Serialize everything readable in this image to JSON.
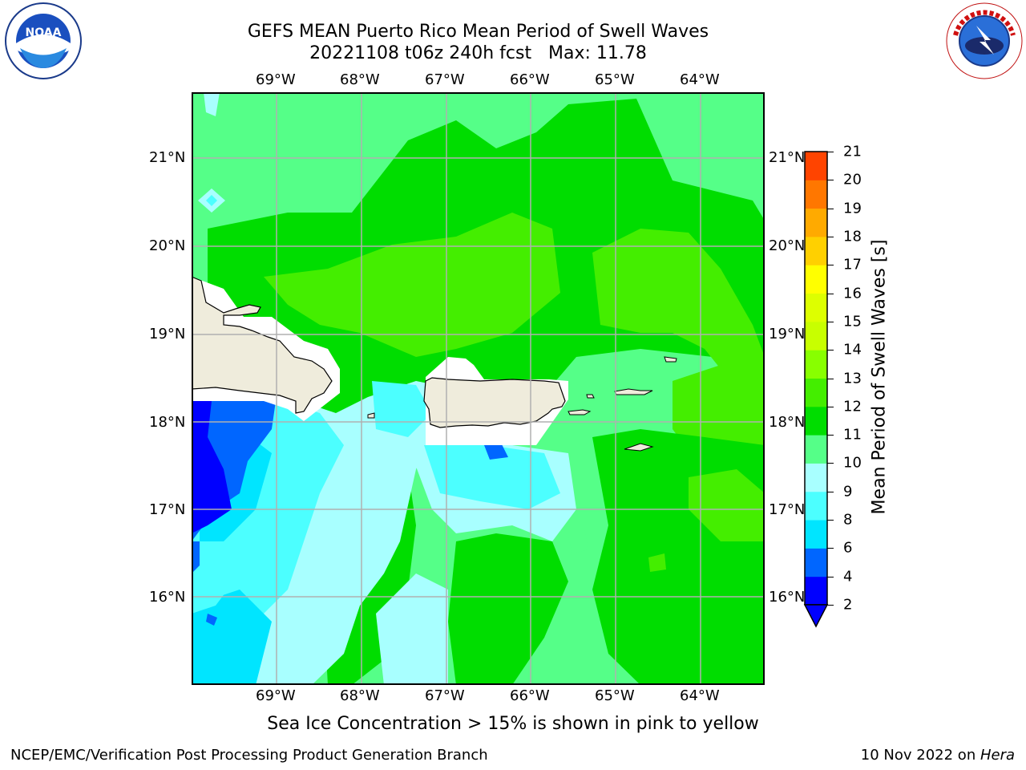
{
  "header": {
    "title_line1": "GEFS MEAN Puerto Rico Mean Period of Swell Waves",
    "title_line2": "20221108 t06z 240h fcst   Max: 11.78"
  },
  "logos": {
    "left": {
      "text": "NOAA",
      "ring_text": "NATIONAL OCEANIC AND ATMOSPHERIC ADMINISTRATION · U.S. DEPARTMENT OF COMMERCE"
    },
    "right": {
      "ring_text": "NATIONAL WEATHER SERVICE"
    }
  },
  "map": {
    "lon_labels": [
      "69°W",
      "68°W",
      "67°W",
      "66°W",
      "65°W",
      "64°W"
    ],
    "lat_labels": [
      "21°N",
      "20°N",
      "19°N",
      "18°N",
      "17°N",
      "16°N"
    ],
    "lon_values": [
      -69,
      -68,
      -67,
      -66,
      -65,
      -64
    ],
    "lat_values": [
      21,
      20,
      19,
      18,
      17,
      16
    ],
    "lon_range": [
      -70,
      -63.25
    ],
    "lat_range": [
      15,
      21.75
    ]
  },
  "colorbar": {
    "label": "Mean Period of Swell Waves [s]",
    "ticks": [
      "2",
      "4",
      "6",
      "8",
      "9",
      "10",
      "11",
      "12",
      "13",
      "14",
      "15",
      "16",
      "17",
      "18",
      "19",
      "20",
      "21"
    ],
    "colors": [
      "#0000ff",
      "#0066ff",
      "#00e5ff",
      "#4cffff",
      "#a8ffff",
      "#55ff88",
      "#00dd00",
      "#44ee00",
      "#88ff00",
      "#c8ff00",
      "#ddff00",
      "#ffff00",
      "#ffd000",
      "#ffaa00",
      "#ff7700",
      "#ff4400",
      "#ff0000"
    ]
  },
  "colors": {
    "land": "#efecdc",
    "grid": "#b0b0b0",
    "ocean_base": "#55ff88"
  },
  "subtitle": "Sea Ice Concentration > 15% is shown in pink to yellow",
  "footer": {
    "left": "NCEP/EMC/Verification Post Processing Product Generation Branch",
    "date": "10 Nov 2022 on ",
    "host": "Hera"
  }
}
